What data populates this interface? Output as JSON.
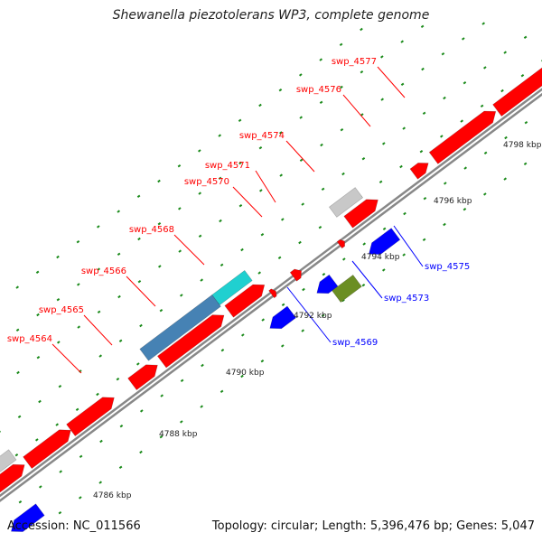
{
  "title": "Shewanella piezotolerans WP3, complete genome",
  "footer": {
    "accession": "Accession: NC_011566",
    "summary": "Topology: circular; Length: 5,396,476 bp; Genes: 5,047"
  },
  "colors": {
    "backbone": "#888888",
    "forward_gene": "#ff0000",
    "reverse_gene": "#0000ff",
    "gray_feature": "#c8c8c8",
    "cyan_feature": "#20d0d0",
    "steelblue_feature": "#4682b4",
    "olive_feature": "#6b8e23",
    "tick": "#1a8a1a",
    "forward_label": "#ff0000",
    "reverse_label": "#0000ff"
  },
  "ruler_labels": [
    "4786 kbp",
    "4788 kbp",
    "4790 kbp",
    "4792 kbp",
    "4794 kbp",
    "4796 kbp",
    "4798 kbp"
  ],
  "forward_labels": [
    "swp_4564",
    "swp_4565",
    "swp_4566",
    "swp_4568",
    "swp_4570",
    "swp_4571",
    "swp_4574",
    "swp_4576",
    "swp_4577"
  ],
  "reverse_labels": [
    "swp_4569",
    "swp_4573",
    "swp_4575"
  ]
}
